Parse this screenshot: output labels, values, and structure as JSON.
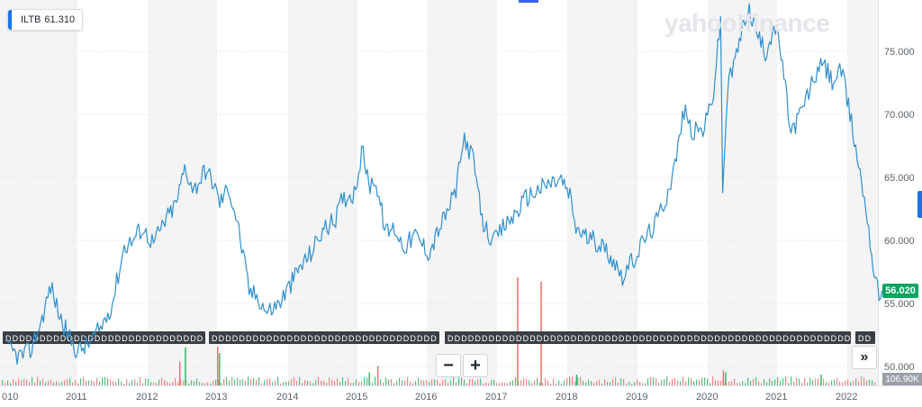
{
  "legend": {
    "ticker": "ILTB",
    "value": "61.310"
  },
  "brand": "yahoo!finance",
  "current_price": {
    "label": "56.020",
    "color": "#0ba360"
  },
  "volume_label": "106.90K",
  "colors": {
    "line": "#2f8fce",
    "up_volume": "#34b569",
    "down_volume": "#f07070",
    "shade": "#f4f4f4",
    "event_marker": "#3a3f45"
  },
  "icons": {
    "zoom_out": "−",
    "zoom_in": "+",
    "expand": "»",
    "event_marker": "D"
  },
  "chart_data": {
    "type": "line",
    "series": [
      {
        "values": [
          [
            "2010-01-01",
            51.5
          ],
          [
            "2010-03-01",
            50.8
          ],
          [
            "2010-05-01",
            51.2
          ],
          [
            "2010-07-01",
            53.8
          ],
          [
            "2010-08-15",
            56.4
          ],
          [
            "2010-10-01",
            54.0
          ],
          [
            "2010-11-15",
            52.4
          ],
          [
            "2011-01-01",
            51.2
          ],
          [
            "2011-03-01",
            51.8
          ],
          [
            "2011-05-01",
            53.0
          ],
          [
            "2011-07-01",
            55.0
          ],
          [
            "2011-09-01",
            59.5
          ],
          [
            "2011-10-15",
            60.0
          ],
          [
            "2011-12-01",
            61.0
          ],
          [
            "2012-02-01",
            59.8
          ],
          [
            "2012-04-01",
            61.5
          ],
          [
            "2012-06-01",
            63.0
          ],
          [
            "2012-07-15",
            65.8
          ],
          [
            "2012-09-01",
            64.0
          ],
          [
            "2012-11-01",
            65.6
          ],
          [
            "2012-12-15",
            64.5
          ],
          [
            "2013-01-15",
            63.0
          ],
          [
            "2013-03-01",
            64.2
          ],
          [
            "2013-04-15",
            61.5
          ],
          [
            "2013-06-15",
            56.0
          ],
          [
            "2013-08-01",
            55.5
          ],
          [
            "2013-09-15",
            54.3
          ],
          [
            "2013-11-15",
            55.0
          ],
          [
            "2014-01-15",
            56.5
          ],
          [
            "2014-03-01",
            57.8
          ],
          [
            "2014-05-01",
            59.0
          ],
          [
            "2014-07-01",
            60.8
          ],
          [
            "2014-09-01",
            61.5
          ],
          [
            "2014-10-15",
            63.3
          ],
          [
            "2014-12-15",
            63.8
          ],
          [
            "2015-01-31",
            67.3
          ],
          [
            "2015-03-01",
            64.2
          ],
          [
            "2015-04-01",
            65.0
          ],
          [
            "2015-06-01",
            60.6
          ],
          [
            "2015-07-15",
            61.0
          ],
          [
            "2015-09-01",
            59.5
          ],
          [
            "2015-11-01",
            60.4
          ],
          [
            "2016-01-15",
            59.0
          ],
          [
            "2016-03-01",
            60.8
          ],
          [
            "2016-04-15",
            62.2
          ],
          [
            "2016-06-01",
            64.0
          ],
          [
            "2016-07-15",
            68.2
          ],
          [
            "2016-09-01",
            66.3
          ],
          [
            "2016-10-15",
            61.5
          ],
          [
            "2016-12-15",
            59.8
          ],
          [
            "2017-02-01",
            61.0
          ],
          [
            "2017-04-01",
            62.0
          ],
          [
            "2017-06-01",
            63.4
          ],
          [
            "2017-08-01",
            64.0
          ],
          [
            "2017-10-01",
            64.5
          ],
          [
            "2017-12-01",
            64.8
          ],
          [
            "2018-01-15",
            63.5
          ],
          [
            "2018-02-15",
            61.0
          ],
          [
            "2018-04-15",
            60.2
          ],
          [
            "2018-06-15",
            59.8
          ],
          [
            "2018-08-15",
            58.8
          ],
          [
            "2018-10-15",
            57.2
          ],
          [
            "2018-12-15",
            58.5
          ],
          [
            "2019-02-01",
            60.0
          ],
          [
            "2019-04-01",
            61.2
          ],
          [
            "2019-06-01",
            63.5
          ],
          [
            "2019-07-15",
            66.0
          ],
          [
            "2019-08-31",
            70.3
          ],
          [
            "2019-10-15",
            68.5
          ],
          [
            "2019-12-15",
            68.9
          ],
          [
            "2020-02-01",
            71.8
          ],
          [
            "2020-03-09",
            77.5
          ],
          [
            "2020-03-20",
            64.0
          ],
          [
            "2020-04-15",
            72.0
          ],
          [
            "2020-06-01",
            74.8
          ],
          [
            "2020-07-31",
            78.5
          ],
          [
            "2020-09-15",
            76.5
          ],
          [
            "2020-10-31",
            74.8
          ],
          [
            "2020-12-15",
            77.0
          ],
          [
            "2021-01-15",
            75.5
          ],
          [
            "2021-03-15",
            68.5
          ],
          [
            "2021-05-15",
            70.5
          ],
          [
            "2021-07-15",
            73.0
          ],
          [
            "2021-08-31",
            74.0
          ],
          [
            "2021-10-15",
            72.6
          ],
          [
            "2021-12-01",
            73.5
          ],
          [
            "2022-01-15",
            70.0
          ],
          [
            "2022-03-01",
            66.0
          ],
          [
            "2022-04-15",
            62.0
          ],
          [
            "2022-05-15",
            58.0
          ],
          [
            "2022-06-15",
            55.5
          ],
          [
            "2022-06-30",
            56.02
          ]
        ]
      }
    ],
    "xlim": [
      "2010-01-01",
      "2022-06-30"
    ],
    "ylim": [
      49.5,
      78.5
    ],
    "x_ticks": [
      "010",
      "2011",
      "2012",
      "2013",
      "2014",
      "2015",
      "2016",
      "2017",
      "2018",
      "2019",
      "2020",
      "2021",
      "2022"
    ],
    "y_ticks": [
      "75.000",
      "70.000",
      "65.000",
      "60.000",
      "55.000",
      "50.000"
    ],
    "volume_spikes": [
      [
        "2012-07-15",
        0.35
      ],
      [
        "2013-01-10",
        0.3
      ],
      [
        "2015-03-01",
        0.12
      ],
      [
        "2018-02-15",
        0.1
      ],
      [
        "2020-04-01",
        0.12
      ],
      [
        "2021-08-15",
        0.1
      ]
    ],
    "down_volume_spikes": [
      [
        "2012-06-15",
        0.22
      ],
      [
        "2013-01-01",
        0.36
      ],
      [
        "2015-04-15",
        0.18
      ],
      [
        "2017-04-15",
        1.0
      ],
      [
        "2017-08-15",
        0.96
      ],
      [
        "2020-03-20",
        0.14
      ]
    ],
    "grid": true
  }
}
